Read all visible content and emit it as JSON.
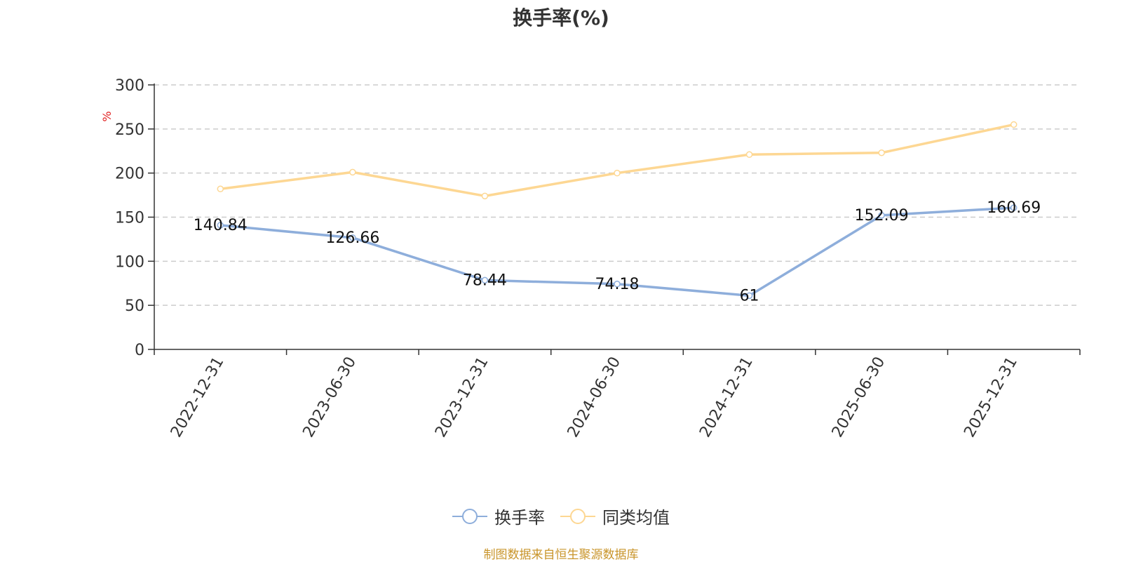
{
  "title": "换手率(%)",
  "unit_label": "%",
  "source_note": "制图数据来自恒生聚源数据库",
  "chart_data": {
    "type": "line",
    "categories": [
      "2022-12-31",
      "2023-06-30",
      "2023-12-31",
      "2024-06-30",
      "2024-12-31",
      "2025-06-30",
      "2025-12-31"
    ],
    "series": [
      {
        "name": "换手率",
        "color": "#8eaedb",
        "values": [
          140.84,
          126.66,
          78.44,
          74.18,
          61,
          152.09,
          160.69
        ],
        "show_labels": true
      },
      {
        "name": "同类均值",
        "color": "#fdd793",
        "values": [
          182,
          201,
          174,
          200,
          221,
          223,
          255
        ],
        "show_labels": false
      }
    ],
    "ylim": [
      0,
      300
    ],
    "yticks": [
      0,
      50,
      100,
      150,
      200,
      250,
      300
    ],
    "grid": true,
    "legend_position": "bottom-center"
  }
}
